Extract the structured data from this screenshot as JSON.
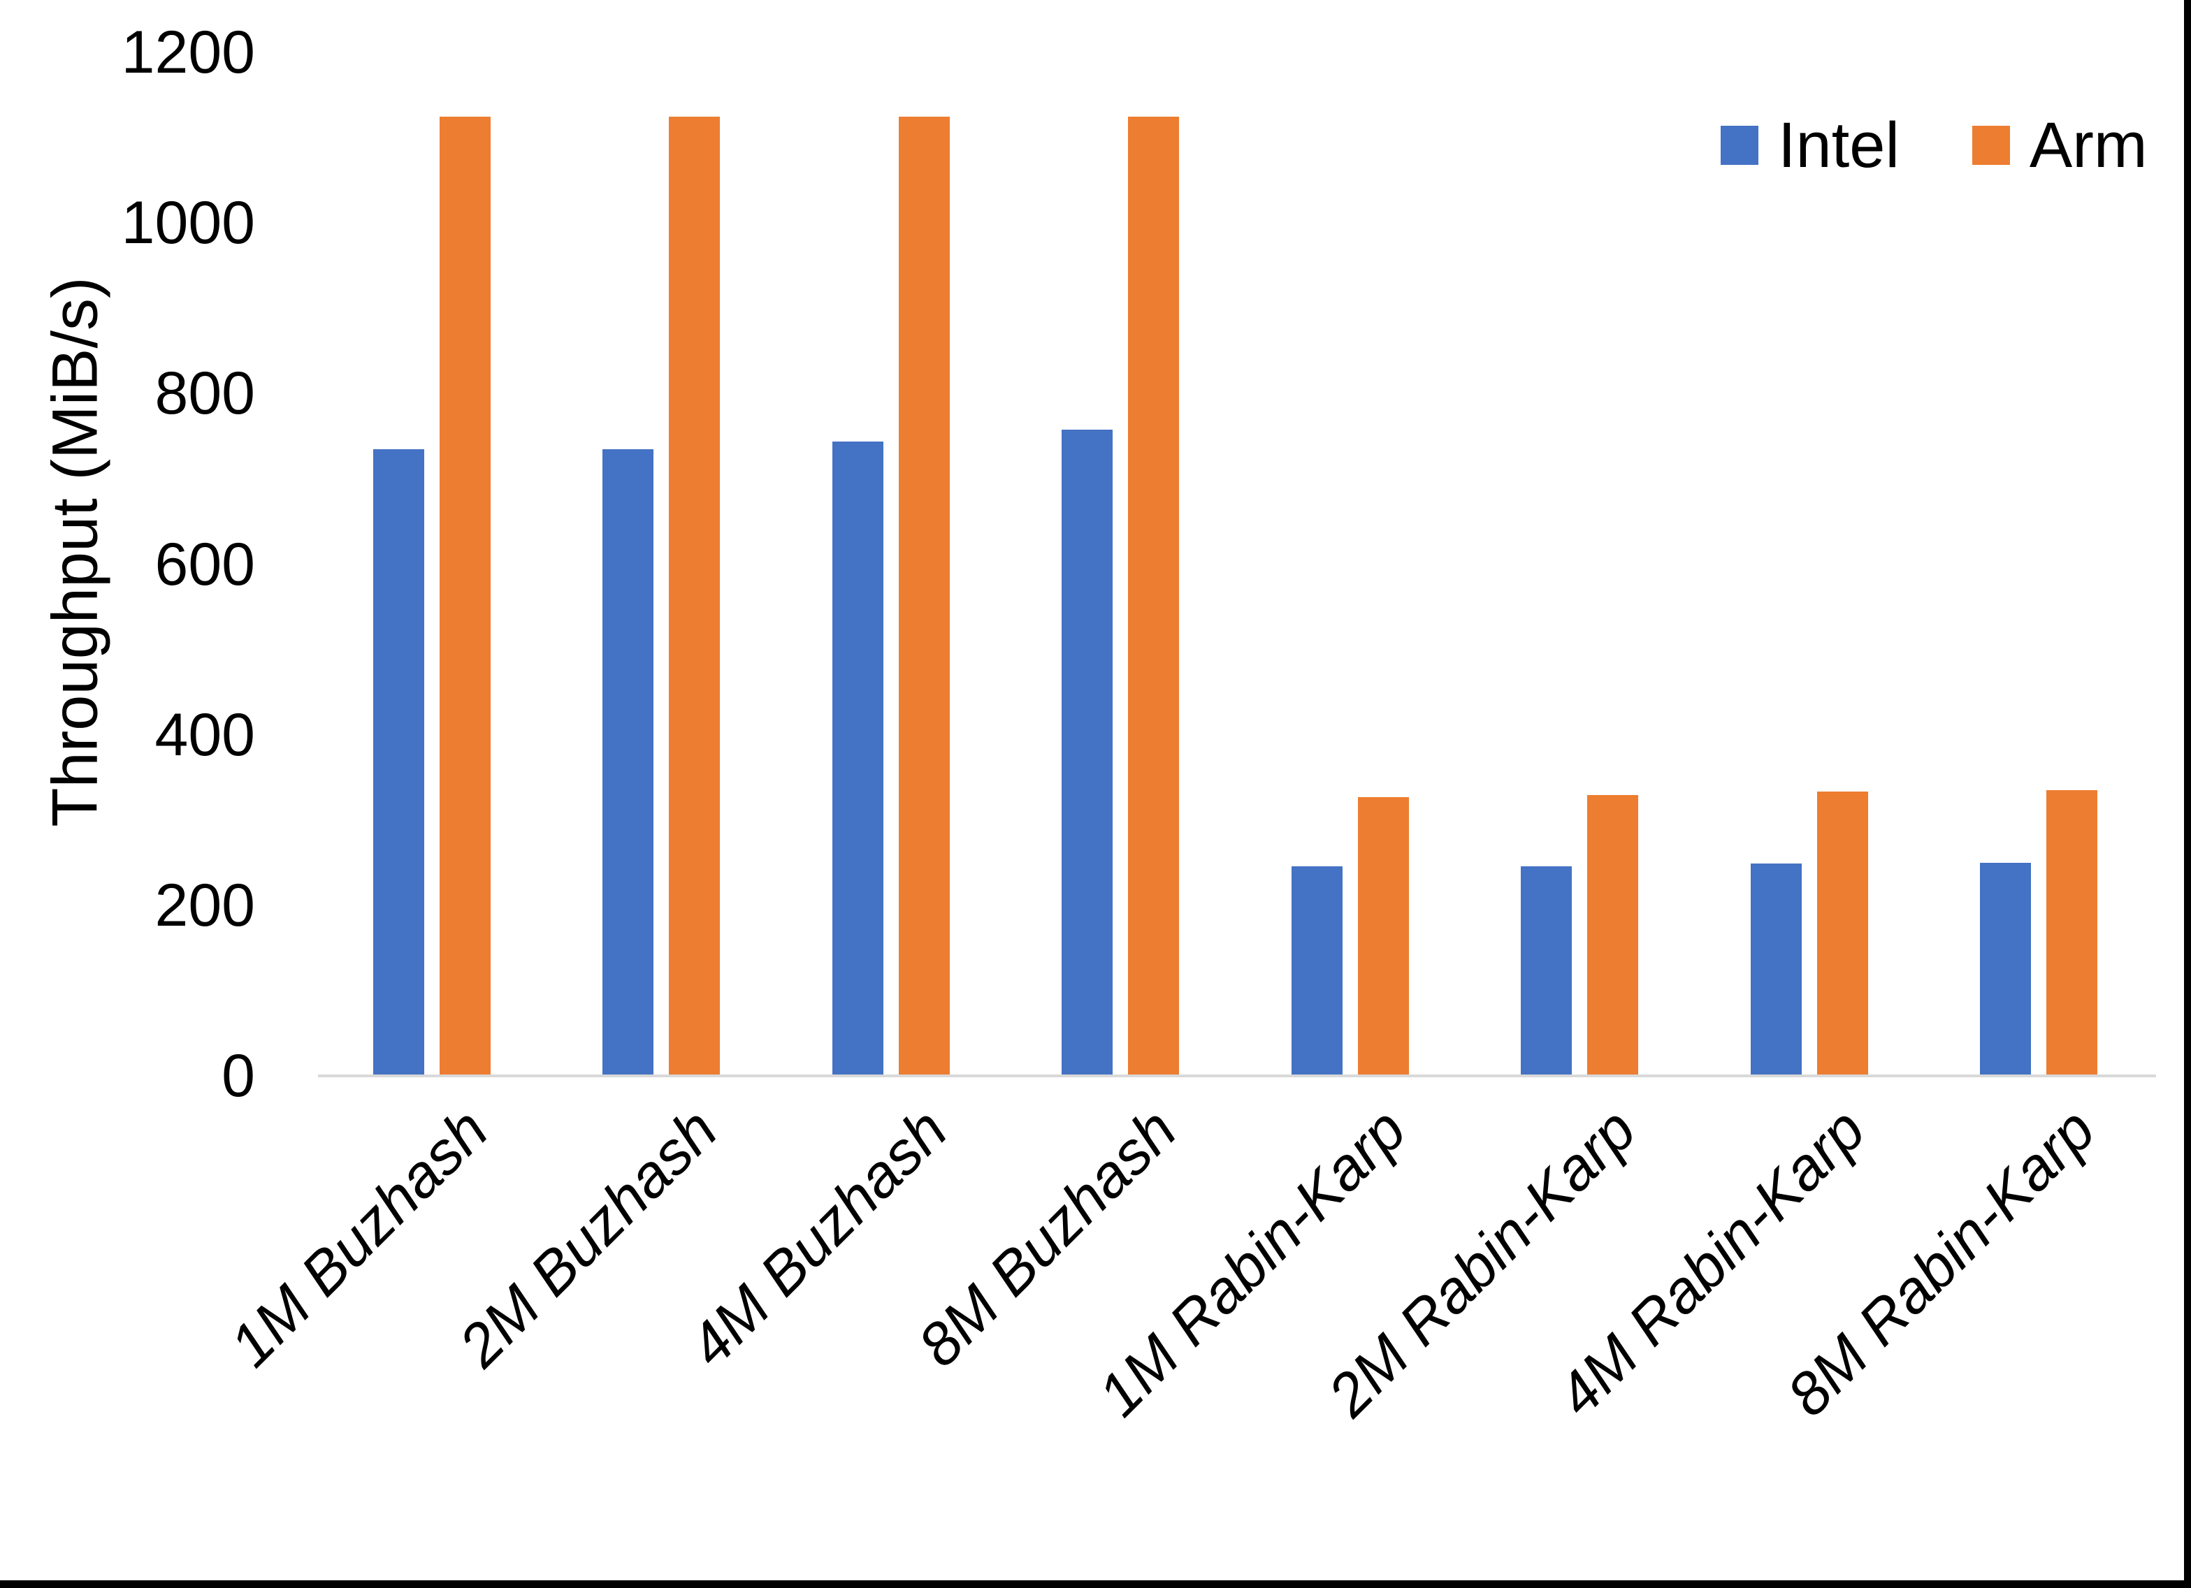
{
  "chart_data": {
    "type": "bar",
    "title": "",
    "xlabel": "",
    "ylabel": "Throughput (MiB/s)",
    "ylim": [
      0,
      1200
    ],
    "yticks": [
      0,
      200,
      400,
      600,
      800,
      1000,
      1200
    ],
    "grid": false,
    "legend_position": "top-right",
    "categories": [
      "1M Buzhash",
      "2M Buzhash",
      "4M Buzhash",
      "8M Buzhash",
      "1M Rabin-Karp",
      "2M Rabin-Karp",
      "4M Rabin-Karp",
      "8M Rabin-Karp"
    ],
    "series": [
      {
        "name": "Intel",
        "color": "#4472C4",
        "values": [
          735,
          735,
          744,
          758,
          246,
          246,
          249,
          250
        ]
      },
      {
        "name": "Arm",
        "color": "#ED7D31",
        "values": [
          1125,
          1125,
          1125,
          1125,
          327,
          329,
          333,
          335
        ]
      }
    ]
  },
  "colors": {
    "background": "#FFFFFF",
    "axis_line": "#D9D9D9",
    "text": "#000000",
    "frame_border": "#000000",
    "intel": "#4472C4",
    "arm": "#ED7D31"
  }
}
